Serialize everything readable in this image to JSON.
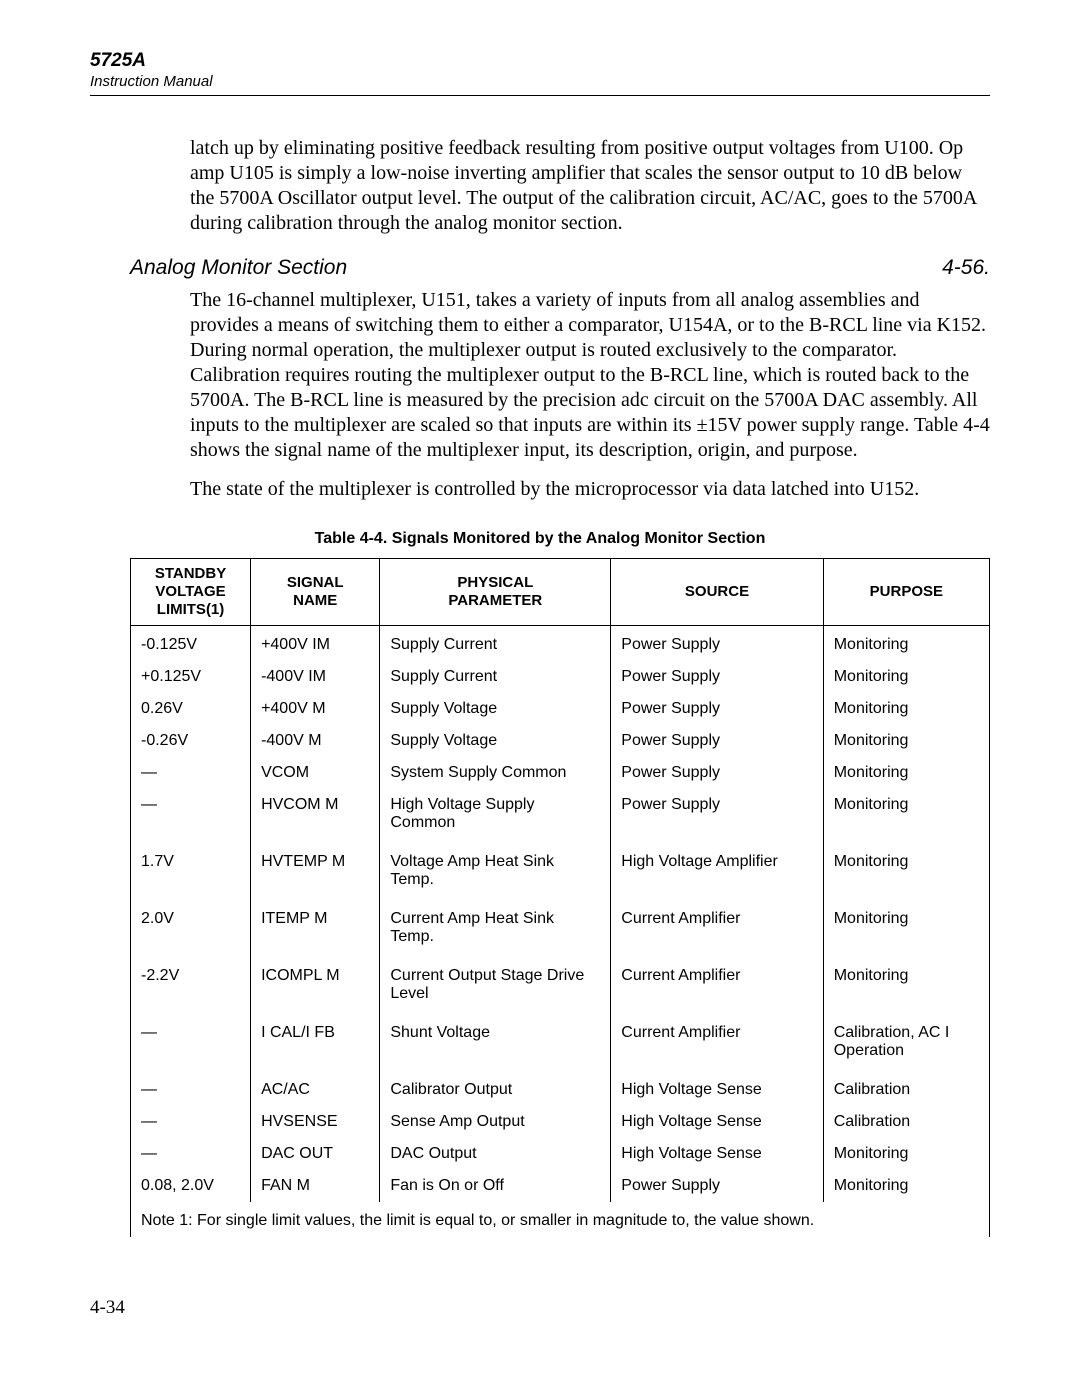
{
  "header": {
    "model": "5725A",
    "manual": "Instruction Manual"
  },
  "intro_paragraph": "latch up by eliminating positive feedback resulting from positive output voltages from U100. Op amp U105 is simply a low-noise inverting amplifier that scales the sensor output to 10 dB below the 5700A Oscillator output level. The output of the calibration circuit, AC/AC, goes to the 5700A during calibration through the analog monitor section.",
  "section": {
    "title": "Analog Monitor Section",
    "number": "4-56."
  },
  "para1": "The 16-channel multiplexer, U151, takes a variety of inputs from all analog assemblies and provides a means of switching them to either a comparator, U154A, or to the B-RCL line via K152. During normal operation, the multiplexer output is routed exclusively to the comparator. Calibration requires routing the multiplexer output to the B-RCL line, which is routed back to the 5700A. The B-RCL line is measured by the precision adc circuit on the 5700A DAC assembly. All inputs to the multiplexer are scaled so that inputs are within its ±15V power supply range. Table 4-4 shows the signal name of the multiplexer input, its description, origin, and purpose.",
  "para2": "The state of the multiplexer is controlled by the microprocessor via data latched into U152.",
  "table": {
    "caption": "Table 4-4. Signals Monitored by the Analog Monitor Section",
    "columns": [
      "STANDBY VOLTAGE LIMITS(1)",
      "SIGNAL NAME",
      "PHYSICAL PARAMETER",
      "SOURCE",
      "PURPOSE"
    ],
    "col_header_lines": {
      "0": [
        "STANDBY",
        "VOLTAGE",
        "LIMITS(1)"
      ],
      "1": [
        "SIGNAL",
        "NAME"
      ],
      "2": [
        "PHYSICAL",
        "PARAMETER"
      ],
      "3": [
        "SOURCE"
      ],
      "4": [
        "PURPOSE"
      ]
    },
    "rows": [
      {
        "standby": "-0.125V",
        "signal": "+400V IM",
        "phys": "Supply Current",
        "source": "Power Supply",
        "purpose": "Monitoring"
      },
      {
        "standby": "+0.125V",
        "signal": "-400V IM",
        "phys": "Supply Current",
        "source": "Power Supply",
        "purpose": "Monitoring"
      },
      {
        "standby": "0.26V",
        "signal": "+400V M",
        "phys": "Supply Voltage",
        "source": "Power Supply",
        "purpose": "Monitoring"
      },
      {
        "standby": "-0.26V",
        "signal": "-400V M",
        "phys": "Supply Voltage",
        "source": "Power Supply",
        "purpose": "Monitoring"
      },
      {
        "standby": "—",
        "signal": "VCOM",
        "phys": "System Supply Common",
        "source": "Power Supply",
        "purpose": "Monitoring"
      },
      {
        "standby": "—",
        "signal": "HVCOM M",
        "phys": "High Voltage Supply Common",
        "source": "Power Supply",
        "purpose": "Monitoring",
        "tall": true
      },
      {
        "standby": "1.7V",
        "signal": "HVTEMP M",
        "phys": "Voltage Amp Heat Sink Temp.",
        "source": "High Voltage Amplifier",
        "purpose": "Monitoring",
        "tall": true
      },
      {
        "standby": "2.0V",
        "signal": "ITEMP M",
        "phys": "Current Amp Heat Sink Temp.",
        "source": "Current Amplifier",
        "purpose": "Monitoring",
        "tall": true
      },
      {
        "standby": "-2.2V",
        "signal": "ICOMPL M",
        "phys": "Current Output Stage Drive Level",
        "source": "Current Amplifier",
        "purpose": "Monitoring",
        "tall": true
      },
      {
        "standby": "—",
        "signal": "I CAL/I FB",
        "phys": "Shunt Voltage",
        "source": "Current Amplifier",
        "purpose": "Calibration, AC I Operation",
        "tall": true
      },
      {
        "standby": "—",
        "signal": "AC/AC",
        "phys": "Calibrator Output",
        "source": "High Voltage Sense",
        "purpose": "Calibration"
      },
      {
        "standby": "—",
        "signal": "HVSENSE",
        "phys": "Sense Amp Output",
        "source": "High Voltage Sense",
        "purpose": "Calibration"
      },
      {
        "standby": "—",
        "signal": "DAC OUT",
        "phys": "DAC Output",
        "source": "High Voltage Sense",
        "purpose": "Monitoring"
      },
      {
        "standby": "0.08, 2.0V",
        "signal": "FAN M",
        "phys": "Fan is On or Off",
        "source": "Power Supply",
        "purpose": "Monitoring"
      }
    ],
    "footnote": "Note 1: For single limit values, the limit is equal to, or smaller in magnitude to, the value shown."
  },
  "page_footer": "4-34"
}
